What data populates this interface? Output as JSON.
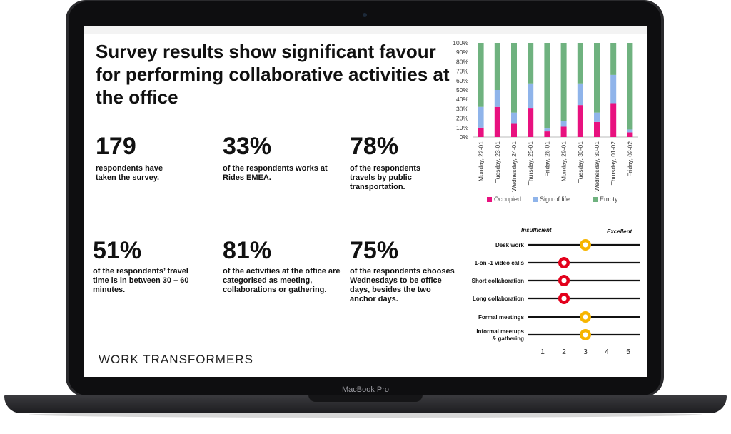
{
  "device": {
    "model_label": "MacBook Pro"
  },
  "slide": {
    "title": "Survey results show significant favour for performing collaborative activities at the office",
    "brand": "WORK TRANSFORMERS",
    "stats": [
      {
        "value": "179",
        "text": "respondents have taken the survey."
      },
      {
        "value": "33%",
        "text": "of the respondents works at Rides EMEA."
      },
      {
        "value": "78%",
        "text": "of the respondents travels by public transportation."
      },
      {
        "value": "51%",
        "text": "of the respondents’ travel time is in between 30 – 60 minutes."
      },
      {
        "value": "81%",
        "text": "of the activities at the office are categorised as meeting, collaborations or  gathering."
      },
      {
        "value": "75%",
        "text": "of the respondents chooses Wednesdays to be office days, besides the two anchor days."
      }
    ]
  },
  "chart_data": [
    {
      "type": "bar",
      "stacked": true,
      "categories": [
        "Monday, 22-01",
        "Tuesday, 23-01",
        "Wednesday, 24-01",
        "Thursday, 25-01",
        "Friday, 26-01",
        "Monday, 29-01",
        "Tuesday, 30-01",
        "Wednesday, 30-01",
        "Thursday, 01-02",
        "Friday, 02-02"
      ],
      "series": [
        {
          "name": "Occupied",
          "color": "#e8117f",
          "values": [
            10,
            32,
            14,
            31,
            6,
            11,
            34,
            16,
            36,
            5
          ]
        },
        {
          "name": "Sign of life",
          "color": "#8fb4ea",
          "values": [
            22,
            18,
            12,
            26,
            3,
            6,
            23,
            10,
            30,
            3
          ]
        },
        {
          "name": "Empty",
          "color": "#6fb27f",
          "values": [
            68,
            50,
            74,
            43,
            91,
            83,
            43,
            74,
            34,
            92
          ]
        }
      ],
      "ylim": [
        0,
        100
      ],
      "yticks": [
        "0%",
        "10%",
        "20%",
        "30%",
        "40%",
        "50%",
        "60%",
        "70%",
        "80%",
        "90%",
        "100%"
      ],
      "legend_position": "bottom"
    },
    {
      "type": "scatter",
      "header_left": "Insufficient",
      "header_right": "Excellent",
      "x_ticks": [
        "1",
        "2",
        "3",
        "4",
        "5"
      ],
      "ylim": [
        1,
        5
      ],
      "colors": {
        "insufficient": "#e3001b",
        "sufficient": "#f7b500"
      },
      "rows": [
        {
          "label": "Desk work",
          "score": 3,
          "status": "sufficient"
        },
        {
          "label": "1-on -1 video calls",
          "score": 2,
          "status": "insufficient"
        },
        {
          "label": "Short collaboration",
          "score": 2,
          "status": "insufficient"
        },
        {
          "label": "Long collaboration",
          "score": 2,
          "status": "insufficient"
        },
        {
          "label": "Formal meetings",
          "score": 3,
          "status": "sufficient"
        },
        {
          "label": "Informal meetups & gathering",
          "score": 3,
          "status": "sufficient"
        }
      ]
    }
  ]
}
